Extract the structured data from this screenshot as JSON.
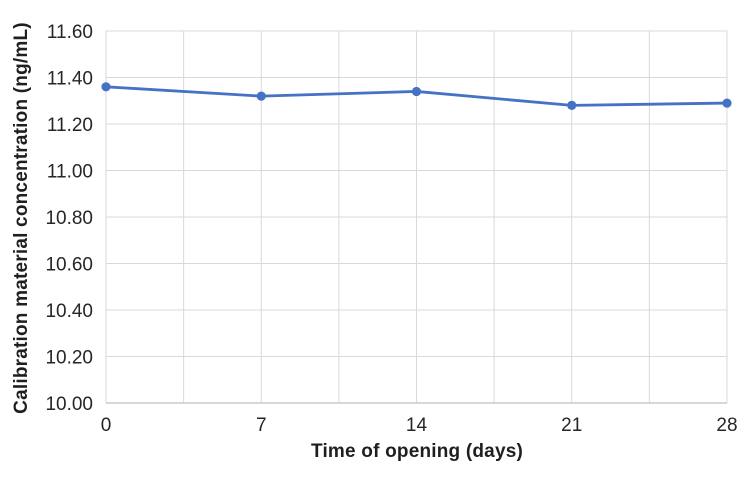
{
  "chart_data": {
    "type": "line",
    "title": "",
    "xlabel": "Time of opening (days)",
    "ylabel": "Calibration material concentration (ng/mL)",
    "x": [
      0,
      7,
      14,
      21,
      28
    ],
    "x_tick_labels": [
      "0",
      "7",
      "14",
      "21",
      "28"
    ],
    "series": [
      {
        "name": "Calibration material concentration",
        "values": [
          11.36,
          11.32,
          11.34,
          11.28,
          11.29
        ],
        "color": "#4472C4",
        "marker": "circle"
      }
    ],
    "xlim": [
      0,
      28
    ],
    "ylim": [
      10.0,
      11.6
    ],
    "y_tick_step": 0.2,
    "y_tick_decimals": 2,
    "y_tick_labels": [
      "10.00",
      "10.20",
      "10.40",
      "10.60",
      "10.80",
      "11.00",
      "11.20",
      "11.40",
      "11.60"
    ],
    "x_gridline_step": 3.5,
    "grid": "on",
    "legend": "none",
    "colors": {
      "background": "#FFFFFF",
      "gridline": "#D9D9D9",
      "axis_line": "#BFBFBF",
      "tick_text": "#262626",
      "title_text": "#1F1F1F",
      "line": "#4472C4"
    }
  }
}
